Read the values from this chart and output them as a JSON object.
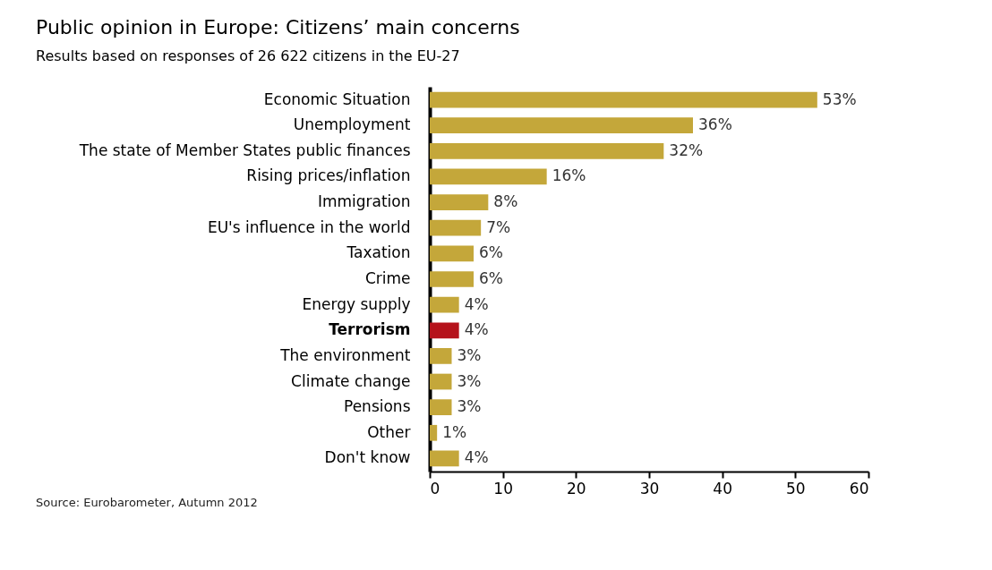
{
  "chart_data": {
    "type": "bar",
    "orientation": "horizontal",
    "title": "Public opinion in Europe: Citizens’ main concerns",
    "subtitle": "Results based on responses of 26 622 citizens in the EU-27",
    "categories": [
      "Economic Situation",
      "Unemployment",
      "The state of Member States public finances",
      "Rising prices/inflation",
      "Immigration",
      "EU's influence in the world",
      "Taxation",
      "Crime",
      "Energy supply",
      "Terrorism",
      "The environment",
      "Climate change",
      "Pensions",
      "Other",
      "Don't know"
    ],
    "values": [
      53,
      36,
      32,
      16,
      8,
      7,
      6,
      6,
      4,
      4,
      3,
      3,
      3,
      1,
      4
    ],
    "value_labels": [
      "53%",
      "36%",
      "32%",
      "16%",
      "8%",
      "7%",
      "6%",
      "6%",
      "4%",
      "4%",
      "3%",
      "3%",
      "3%",
      "1%",
      "4%"
    ],
    "colors": [
      "#c4a73a",
      "#c4a73a",
      "#c4a73a",
      "#c4a73a",
      "#c4a73a",
      "#c4a73a",
      "#c4a73a",
      "#c4a73a",
      "#c4a73a",
      "#b5121b",
      "#c4a73a",
      "#c4a73a",
      "#c4a73a",
      "#c4a73a",
      "#c4a73a"
    ],
    "xlim": [
      0,
      60
    ],
    "xticks": [
      0,
      10,
      20,
      30,
      40,
      50,
      60
    ],
    "grid": false,
    "annotations": [
      "Source: Eurobarometer, Autumn 2012"
    ]
  }
}
